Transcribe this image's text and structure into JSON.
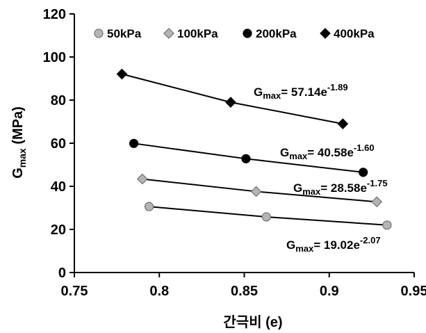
{
  "chart_data": {
    "type": "scatter",
    "xlabel": "간극비 (e)",
    "ylabel_main": "G",
    "ylabel_sub": "max",
    "ylabel_unit": "  (MPa)",
    "xlim": [
      0.75,
      0.95
    ],
    "ylim": [
      0,
      120
    ],
    "xticks": [
      "0.75",
      "0.8",
      "0.85",
      "0.9",
      "0.95"
    ],
    "yticks": [
      "0",
      "20",
      "40",
      "60",
      "80",
      "100",
      "120"
    ],
    "grid": false,
    "legend_position": "top",
    "series": [
      {
        "name": "50kPa",
        "marker": "circle-gray",
        "x": [
          0.794,
          0.863,
          0.934
        ],
        "y": [
          30.6,
          25.8,
          22.0
        ],
        "equation": {
          "main": "G",
          "sub": "max",
          "rest": "= 19.02e",
          "exp": "-2.07"
        }
      },
      {
        "name": "100kPa",
        "marker": "diamond-gray",
        "x": [
          0.79,
          0.857,
          0.928
        ],
        "y": [
          43.4,
          37.6,
          32.8
        ],
        "equation": {
          "main": "G",
          "sub": "max",
          "rest": "= 28.58e",
          "exp": "-1.75"
        }
      },
      {
        "name": "200kPa",
        "marker": "circle-black",
        "x": [
          0.785,
          0.851,
          0.92
        ],
        "y": [
          59.9,
          52.8,
          46.5
        ],
        "equation": {
          "main": "G",
          "sub": "max",
          "rest": "= 40.58e",
          "exp": "-1.60"
        }
      },
      {
        "name": "400kPa",
        "marker": "diamond-black",
        "x": [
          0.778,
          0.842,
          0.908
        ],
        "y": [
          92.1,
          79.0,
          69.0
        ],
        "equation": {
          "main": "G",
          "sub": "max",
          "rest": "= 57.14e",
          "exp": "-1.89"
        }
      }
    ]
  },
  "colors": {
    "black": "#000000",
    "gray_fill": "#b5b5b5",
    "gray_stroke": "#6e6e6e"
  }
}
